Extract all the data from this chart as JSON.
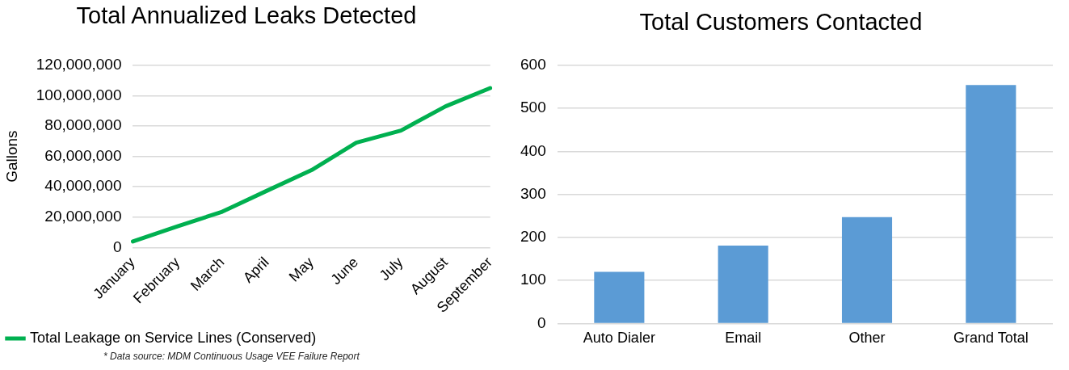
{
  "chart_data": [
    {
      "type": "line",
      "title": "Total Annualized Leaks Detected",
      "ylabel": "Gallons",
      "categories": [
        "January",
        "February",
        "March",
        "April",
        "May",
        "June",
        "July",
        "August",
        "September"
      ],
      "series": [
        {
          "name": "Total Leakage on Service Lines (Conserved)",
          "color": "#00b050",
          "values": [
            4000000,
            14000000,
            23600000,
            37400000,
            51000000,
            69000000,
            77000000,
            93000000,
            105000000
          ]
        }
      ],
      "ylim": [
        0,
        120000000
      ],
      "yticks": [
        {
          "value": 0,
          "label": "0"
        },
        {
          "value": 20000000,
          "label": "20,000,000"
        },
        {
          "value": 40000000,
          "label": "40,000,000"
        },
        {
          "value": 60000000,
          "label": "60,000,000"
        },
        {
          "value": 80000000,
          "label": "80,000,000"
        },
        {
          "value": 100000000,
          "label": "100,000,000"
        },
        {
          "value": 120000000,
          "label": "120,000,000"
        }
      ],
      "grid": "y",
      "legend": "bottom left",
      "marker": "none",
      "line_style": "solid",
      "annotations": [
        "* Data source: MDM Continuous Usage VEE Failure Report"
      ]
    },
    {
      "type": "bar",
      "title": "Total Customers Contacted",
      "categories": [
        "Auto Dialer",
        "Email",
        "Other",
        "Grand Total"
      ],
      "values": [
        120,
        181,
        247,
        554
      ],
      "color": "#5b9bd5",
      "ylim": [
        0,
        600
      ],
      "yticks": [
        0,
        100,
        200,
        300,
        400,
        500,
        600
      ],
      "grid": "y"
    }
  ]
}
